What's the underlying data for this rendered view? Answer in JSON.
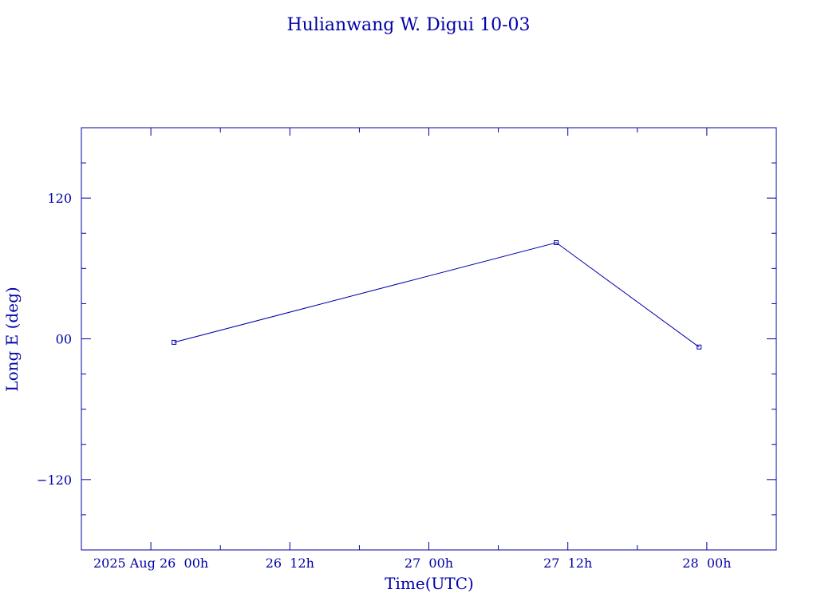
{
  "chart_data": {
    "type": "line",
    "title": "Hulianwang W. Digui 10-03",
    "xlabel": "Time(UTC)",
    "ylabel": "Long E (deg)",
    "color": "#0000a8",
    "grid": false,
    "legend": "none",
    "xlim": [
      "2025-08-25T18:00Z",
      "2025-08-28T06:00Z"
    ],
    "ylim": [
      -180,
      180
    ],
    "x_tick_labels": [
      {
        "at": "2025-08-26T00:00Z",
        "label": "2025 Aug 26  00h"
      },
      {
        "at": "2025-08-26T12:00Z",
        "label": "26  12h"
      },
      {
        "at": "2025-08-27T00:00Z",
        "label": "27  00h"
      },
      {
        "at": "2025-08-27T12:00Z",
        "label": "27  12h"
      },
      {
        "at": "2025-08-28T00:00Z",
        "label": "28  00h"
      }
    ],
    "y_tick_labels": [
      {
        "value": 120,
        "label": "120"
      },
      {
        "value": 0,
        "label": "00"
      },
      {
        "value": -120,
        "label": "−120"
      }
    ],
    "series": [
      {
        "x": [
          "2025-08-26T02:00Z",
          "2025-08-27T11:00Z",
          "2025-08-27T23:20Z"
        ],
        "y": [
          -3,
          82,
          -7
        ]
      }
    ]
  }
}
